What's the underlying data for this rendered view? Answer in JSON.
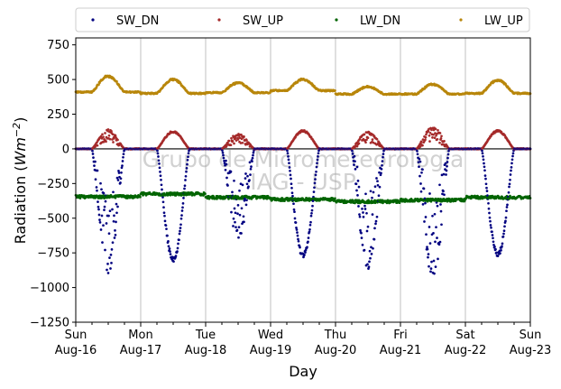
{
  "chart_data": {
    "type": "scatter",
    "title": "",
    "xlabel": "Day",
    "ylabel_main": "Radiation (",
    "ylabel_unit": "Wm",
    "ylabel_exp": "−2",
    "ylabel_close": ")",
    "ylim": [
      -1250,
      800
    ],
    "xlim": [
      "2020-08-16",
      "2020-08-23"
    ],
    "yticks": [
      -1250,
      -1000,
      -750,
      -500,
      -250,
      0,
      250,
      500,
      750
    ],
    "ytick_labels": [
      "−1250",
      "−1000",
      "−750",
      "−500",
      "−250",
      "0",
      "250",
      "500",
      "750"
    ],
    "xticks": [
      {
        "day": "Sun",
        "date": "Aug-16"
      },
      {
        "day": "Mon",
        "date": "Aug-17"
      },
      {
        "day": "Tue",
        "date": "Aug-18"
      },
      {
        "day": "Wed",
        "date": "Aug-19"
      },
      {
        "day": "Thu",
        "date": "Aug-20"
      },
      {
        "day": "Fri",
        "date": "Aug-21"
      },
      {
        "day": "Sat",
        "date": "Aug-22"
      },
      {
        "day": "Sun",
        "date": "Aug-23"
      }
    ],
    "grid": "vertical",
    "zero_line": 0,
    "legend_position": "top",
    "watermark": [
      "Grupo de Micrometeorologia",
      "IAG - USP"
    ],
    "series": [
      {
        "name": "SW_DN",
        "color": "#000080",
        "daily_peak": [
          -900,
          -820,
          -660,
          -790,
          -880,
          -950,
          -780
        ]
      },
      {
        "name": "SW_UP",
        "color": "#a52a2a",
        "daily_peak": [
          140,
          130,
          110,
          135,
          125,
          160,
          135
        ]
      },
      {
        "name": "LW_DN",
        "color": "#006400",
        "base": -340,
        "variation": [
          -345,
          -325,
          -350,
          -365,
          -380,
          -370,
          -350
        ]
      },
      {
        "name": "LW_UP",
        "color": "#b8860b",
        "night_base": [
          410,
          400,
          405,
          420,
          395,
          395,
          400
        ],
        "daily_peak": [
          530,
          505,
          480,
          505,
          450,
          470,
          500
        ]
      }
    ]
  }
}
